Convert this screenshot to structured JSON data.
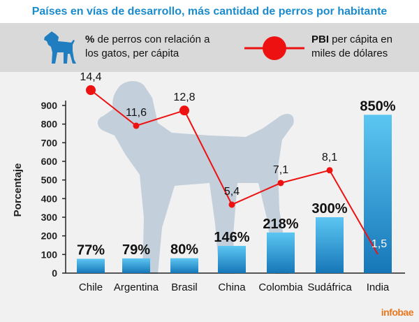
{
  "title": "Países en vías de desarrollo, más cantidad de  perros  por habitante",
  "legend": {
    "bars_bold": "%",
    "bars_text_line1": " de perros con relación a",
    "bars_text_line2": "los gatos, per cápita",
    "line_bold": "PBI",
    "line_text_line1": " per cápita en",
    "line_text_line2": "miles de dólares"
  },
  "brand": "infobae",
  "colors": {
    "bar_top": "#5cc6f2",
    "bar_bottom": "#1677b8",
    "line": "#ee1111",
    "title": "#1a8bcc",
    "legend_bg": "#d9d9d9",
    "plot_bg": "#f1f1f1",
    "dog_silhouette": "#c3cfdb",
    "legend_dog": "#1f7dc0"
  },
  "chart_data": {
    "type": "bar",
    "categories": [
      "Chile",
      "Argentina",
      "Brasil",
      "China",
      "Colombia",
      "Sudáfrica",
      "India"
    ],
    "series": [
      {
        "values": [
          77,
          79,
          80,
          146,
          218,
          300,
          850
        ],
        "labels": [
          "77%",
          "79%",
          "80%",
          "146%",
          "218%",
          "300%",
          "850%"
        ]
      },
      {
        "type": "line",
        "values": [
          14.4,
          11.6,
          12.8,
          5.4,
          7.1,
          8.1,
          1.5
        ],
        "labels": [
          "14,4",
          "11,6",
          "12,8",
          "5,4",
          "7,1",
          "8,1",
          "1,5"
        ],
        "large_markers": [
          true,
          false,
          true,
          false,
          false,
          false,
          false
        ]
      }
    ],
    "ylabel": "Porcentaje",
    "yticks": [
      0,
      100,
      200,
      300,
      400,
      500,
      600,
      700,
      800,
      900
    ],
    "ylim": [
      0,
      960
    ],
    "grid": false
  }
}
